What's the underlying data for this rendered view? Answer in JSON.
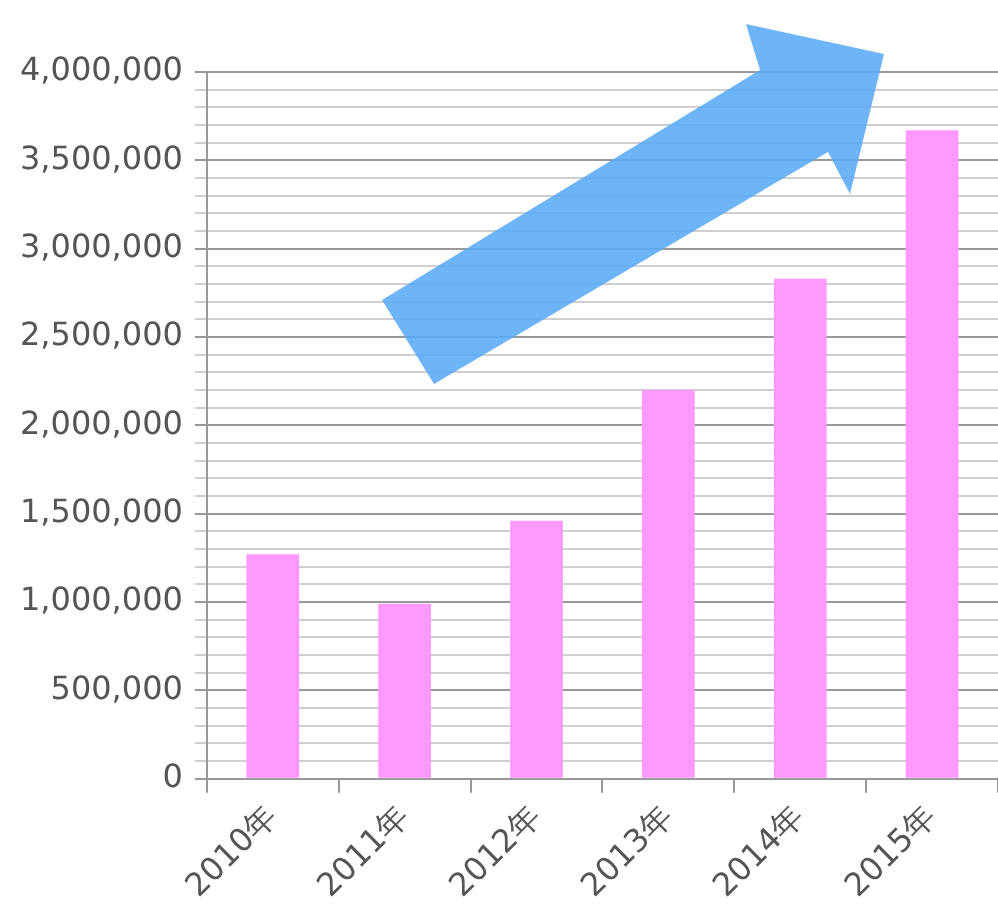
{
  "chart_data": {
    "type": "bar",
    "categories": [
      "2010年",
      "2011年",
      "2012年",
      "2013年",
      "2014年",
      "2015年"
    ],
    "values": [
      1270000,
      990000,
      1460000,
      2200000,
      2830000,
      3670000
    ],
    "color": "#ff99ff",
    "ylim": [
      0,
      4000000
    ],
    "yticks": [
      0,
      {
        "value": 100000,
        "label": null
      },
      {
        "value": 200000,
        "label": null
      },
      {
        "value": 300000,
        "label": null
      },
      {
        "value": 400000,
        "label": null
      },
      {
        "value": 500000,
        "label": "500,000"
      },
      {
        "value": 600000,
        "label": null
      },
      {
        "value": 700000,
        "label": null
      },
      {
        "value": 800000,
        "label": null
      },
      {
        "value": 900000,
        "label": null
      },
      {
        "value": 1000000,
        "label": "1,000,000"
      },
      {
        "value": 1100000,
        "label": null
      },
      {
        "value": 1200000,
        "label": null
      },
      {
        "value": 1300000,
        "label": null
      },
      {
        "value": 1400000,
        "label": null
      },
      {
        "value": 1500000,
        "label": "1,500,000"
      },
      {
        "value": 1600000,
        "label": null
      },
      {
        "value": 1700000,
        "label": null
      },
      {
        "value": 1800000,
        "label": null
      },
      {
        "value": 1900000,
        "label": null
      },
      {
        "value": 2000000,
        "label": "2,000,000"
      },
      {
        "value": 2100000,
        "label": null
      },
      {
        "value": 2200000,
        "label": null
      },
      {
        "value": 2300000,
        "label": null
      },
      {
        "value": 2400000,
        "label": null
      },
      {
        "value": 2500000,
        "label": "2,500,000"
      },
      {
        "value": 2600000,
        "label": null
      },
      {
        "value": 2700000,
        "label": null
      },
      {
        "value": 2800000,
        "label": null
      },
      {
        "value": 2900000,
        "label": null
      },
      {
        "value": 3000000,
        "label": "3,000,000"
      },
      {
        "value": 3100000,
        "label": null
      },
      {
        "value": 3200000,
        "label": null
      },
      {
        "value": 3300000,
        "label": null
      },
      {
        "value": 3400000,
        "label": null
      },
      {
        "value": 3500000,
        "label": "3,500,000"
      },
      {
        "value": 3600000,
        "label": null
      },
      {
        "value": 3700000,
        "label": null
      },
      {
        "value": 3800000,
        "label": null
      },
      {
        "value": 3900000,
        "label": null
      },
      {
        "value": 4000000,
        "label": "4,000,000"
      }
    ],
    "grid": "y",
    "legend": false
  }
}
